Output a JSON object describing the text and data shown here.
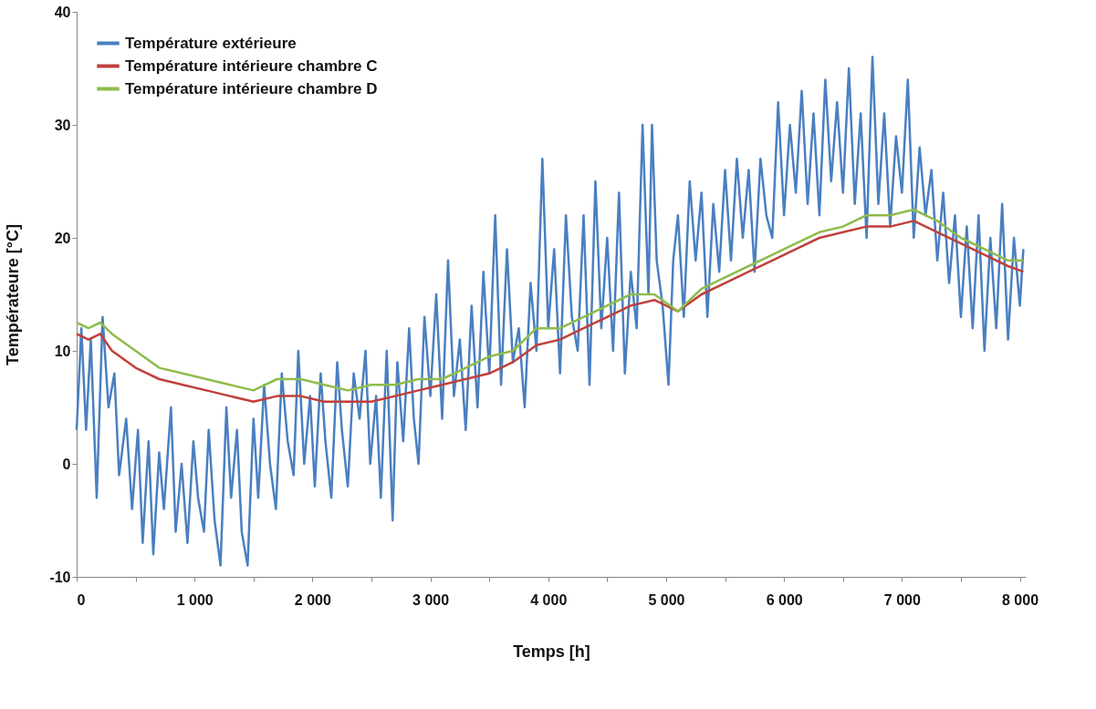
{
  "chart_data": {
    "type": "line",
    "xlabel": "Temps [h]",
    "ylabel": "Températeure [°C]",
    "xlim": [
      0,
      8050
    ],
    "ylim": [
      -10,
      40
    ],
    "xticks": [
      0,
      {
        "value": 500,
        "label": null
      },
      {
        "value": 1000,
        "label": "1 000"
      },
      {
        "value": 1500,
        "label": null
      },
      {
        "value": 2000,
        "label": "2 000"
      },
      {
        "value": 2500,
        "label": null
      },
      {
        "value": 3000,
        "label": "3 000"
      },
      {
        "value": 3500,
        "label": null
      },
      {
        "value": 4000,
        "label": "4 000"
      },
      {
        "value": 4500,
        "label": null
      },
      {
        "value": 5000,
        "label": "5 000"
      },
      {
        "value": 5500,
        "label": null
      },
      {
        "value": 6000,
        "label": "6 000"
      },
      {
        "value": 6500,
        "label": null
      },
      {
        "value": 7000,
        "label": "7 000"
      },
      {
        "value": 7500,
        "label": null
      },
      {
        "value": 8000,
        "label": "8 000"
      }
    ],
    "yticks": [
      -10,
      0,
      10,
      20,
      30,
      40
    ],
    "grid": false,
    "legend": "top left",
    "line_style": "solid",
    "series": [
      {
        "name": "Température extérieure",
        "color": "#4a7fc1",
        "x": [
          0,
          40,
          80,
          120,
          170,
          220,
          270,
          320,
          360,
          420,
          470,
          520,
          560,
          610,
          650,
          700,
          740,
          800,
          840,
          890,
          940,
          990,
          1030,
          1080,
          1120,
          1170,
          1220,
          1270,
          1310,
          1360,
          1400,
          1450,
          1500,
          1540,
          1590,
          1640,
          1690,
          1740,
          1790,
          1840,
          1880,
          1930,
          1980,
          2020,
          2070,
          2110,
          2160,
          2210,
          2250,
          2300,
          2350,
          2400,
          2450,
          2490,
          2540,
          2580,
          2630,
          2680,
          2720,
          2770,
          2820,
          2860,
          2900,
          2950,
          3000,
          3050,
          3100,
          3150,
          3200,
          3250,
          3300,
          3350,
          3400,
          3450,
          3500,
          3550,
          3600,
          3650,
          3700,
          3750,
          3800,
          3850,
          3900,
          3950,
          4000,
          4050,
          4100,
          4150,
          4200,
          4250,
          4300,
          4350,
          4400,
          4450,
          4500,
          4550,
          4600,
          4650,
          4700,
          4750,
          4800,
          4850,
          4880,
          4920,
          4970,
          5020,
          5060,
          5100,
          5150,
          5200,
          5250,
          5300,
          5350,
          5400,
          5450,
          5500,
          5550,
          5600,
          5650,
          5700,
          5750,
          5800,
          5850,
          5900,
          5950,
          6000,
          6050,
          6100,
          6150,
          6200,
          6250,
          6300,
          6350,
          6400,
          6450,
          6500,
          6550,
          6600,
          6650,
          6700,
          6750,
          6800,
          6850,
          6900,
          6950,
          7000,
          7050,
          7100,
          7150,
          7200,
          7250,
          7300,
          7350,
          7400,
          7450,
          7500,
          7550,
          7600,
          7650,
          7700,
          7750,
          7800,
          7850,
          7900,
          7950,
          8000,
          8030
        ],
        "values": [
          3,
          12,
          3,
          11,
          -3,
          13,
          5,
          8,
          -1,
          4,
          -4,
          3,
          -7,
          2,
          -8,
          1,
          -4,
          5,
          -6,
          0,
          -7,
          2,
          -3,
          -6,
          3,
          -5,
          -9,
          5,
          -3,
          3,
          -6,
          -9,
          4,
          -3,
          7,
          0,
          -4,
          8,
          2,
          -1,
          10,
          0,
          6,
          -2,
          8,
          2,
          -3,
          9,
          3,
          -2,
          8,
          4,
          10,
          0,
          6,
          -3,
          10,
          -5,
          9,
          2,
          12,
          4,
          0,
          13,
          6,
          15,
          4,
          18,
          6,
          11,
          3,
          14,
          5,
          17,
          8,
          22,
          7,
          19,
          9,
          12,
          5,
          16,
          10,
          27,
          12,
          19,
          8,
          22,
          13,
          10,
          22,
          7,
          25,
          12,
          20,
          10,
          24,
          8,
          17,
          12,
          30,
          15,
          30,
          18,
          14,
          7,
          18,
          22,
          13,
          25,
          18,
          24,
          13,
          23,
          17,
          26,
          18,
          27,
          20,
          26,
          17,
          27,
          22,
          20,
          32,
          22,
          30,
          24,
          33,
          23,
          31,
          22,
          34,
          25,
          32,
          24,
          35,
          23,
          31,
          20,
          36,
          23,
          31,
          21,
          29,
          24,
          34,
          20,
          28,
          22,
          26,
          18,
          24,
          16,
          22,
          13,
          21,
          12,
          22,
          10,
          20,
          12,
          23,
          11,
          20,
          14,
          19
        ]
      },
      {
        "name": "Température intérieure chambre C",
        "color": "#c0403a",
        "x": [
          0,
          100,
          200,
          300,
          500,
          700,
          900,
          1100,
          1300,
          1500,
          1700,
          1900,
          2100,
          2300,
          2500,
          2700,
          2900,
          3100,
          3300,
          3500,
          3700,
          3900,
          4100,
          4300,
          4500,
          4700,
          4900,
          5100,
          5300,
          5500,
          5700,
          5900,
          6100,
          6300,
          6500,
          6700,
          6900,
          7100,
          7300,
          7500,
          7700,
          7900,
          8030
        ],
        "values": [
          11.5,
          11,
          11.5,
          10,
          8.5,
          7.5,
          7,
          6.5,
          6,
          5.5,
          6,
          6,
          5.5,
          5.5,
          5.5,
          6,
          6.5,
          7,
          7.5,
          8,
          9,
          10.5,
          11,
          12,
          13,
          14,
          14.5,
          13.5,
          15,
          16,
          17,
          18,
          19,
          20,
          20.5,
          21,
          21,
          21.5,
          20.5,
          19.5,
          18.5,
          17.5,
          17
        ]
      },
      {
        "name": "Température intérieure chambre D",
        "color": "#8fbc4b",
        "x": [
          0,
          100,
          200,
          300,
          500,
          700,
          900,
          1100,
          1300,
          1500,
          1700,
          1900,
          2100,
          2300,
          2500,
          2700,
          2900,
          3100,
          3300,
          3500,
          3700,
          3900,
          4100,
          4300,
          4500,
          4700,
          4900,
          5100,
          5300,
          5500,
          5700,
          5900,
          6100,
          6300,
          6500,
          6700,
          6900,
          7100,
          7300,
          7500,
          7700,
          7900,
          8030
        ],
        "values": [
          12.5,
          12,
          12.5,
          11.5,
          10,
          8.5,
          8,
          7.5,
          7,
          6.5,
          7.5,
          7.5,
          7,
          6.5,
          7,
          7,
          7.5,
          7.5,
          8.5,
          9.5,
          10,
          12,
          12,
          13,
          14,
          15,
          15,
          13.5,
          15.5,
          16.5,
          17.5,
          18.5,
          19.5,
          20.5,
          21,
          22,
          22,
          22.5,
          21.5,
          20,
          19,
          18,
          18
        ]
      }
    ]
  }
}
